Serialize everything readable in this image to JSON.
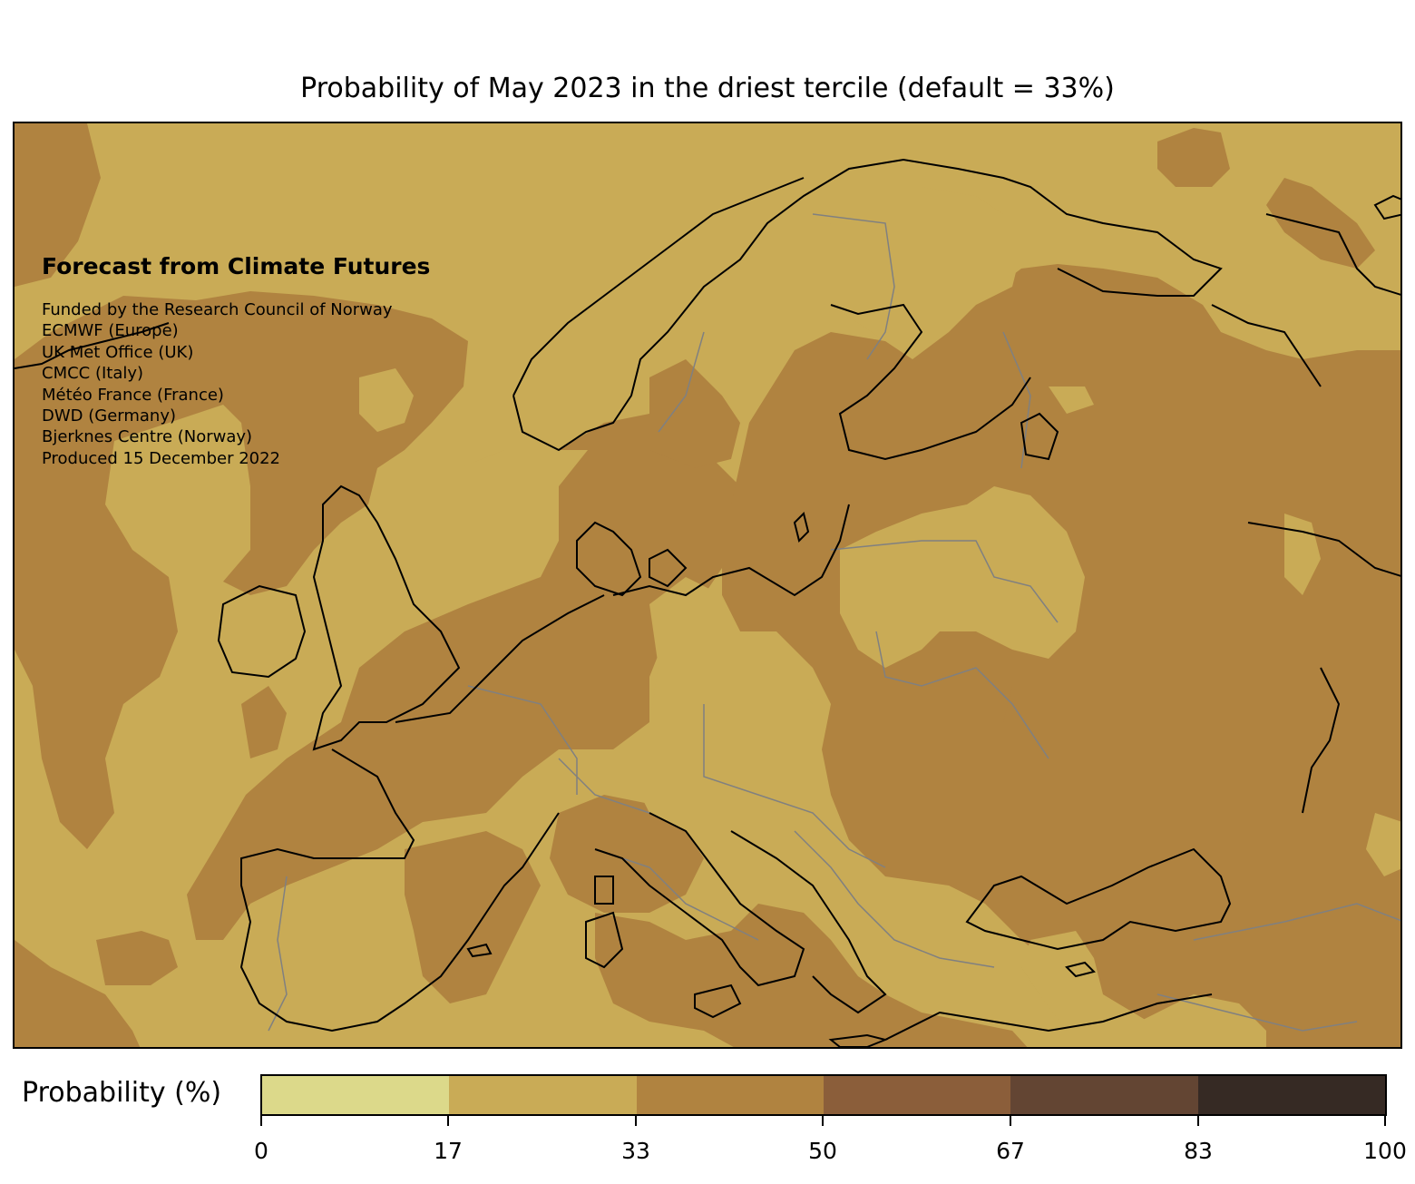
{
  "title": "Probability of May 2023 in the driest tercile (default = 33%)",
  "info": {
    "heading": "Forecast from Climate Futures",
    "lines": [
      "Funded by the Research Council of Norway",
      "ECMWF (Europe)",
      "UK Met Office (UK)",
      "CMCC (Italy)",
      "Météo France (France)",
      "DWD (Germany)",
      "Bjerknes Centre (Norway)",
      "Produced 15 December 2022"
    ]
  },
  "colorbar": {
    "label": "Probability (%)",
    "ticks": [
      "0",
      "17",
      "33",
      "50",
      "67",
      "83",
      "100"
    ],
    "colors": [
      "#dcd98a",
      "#c9ab56",
      "#b08340",
      "#8b5e3a",
      "#634533",
      "#362a24"
    ]
  },
  "map": {
    "region": "Europe",
    "land_outline_color": "#000000",
    "border_color": "#808080",
    "field_colors": {
      "17-33": "#c9ab56",
      "33-50": "#b08340"
    }
  }
}
